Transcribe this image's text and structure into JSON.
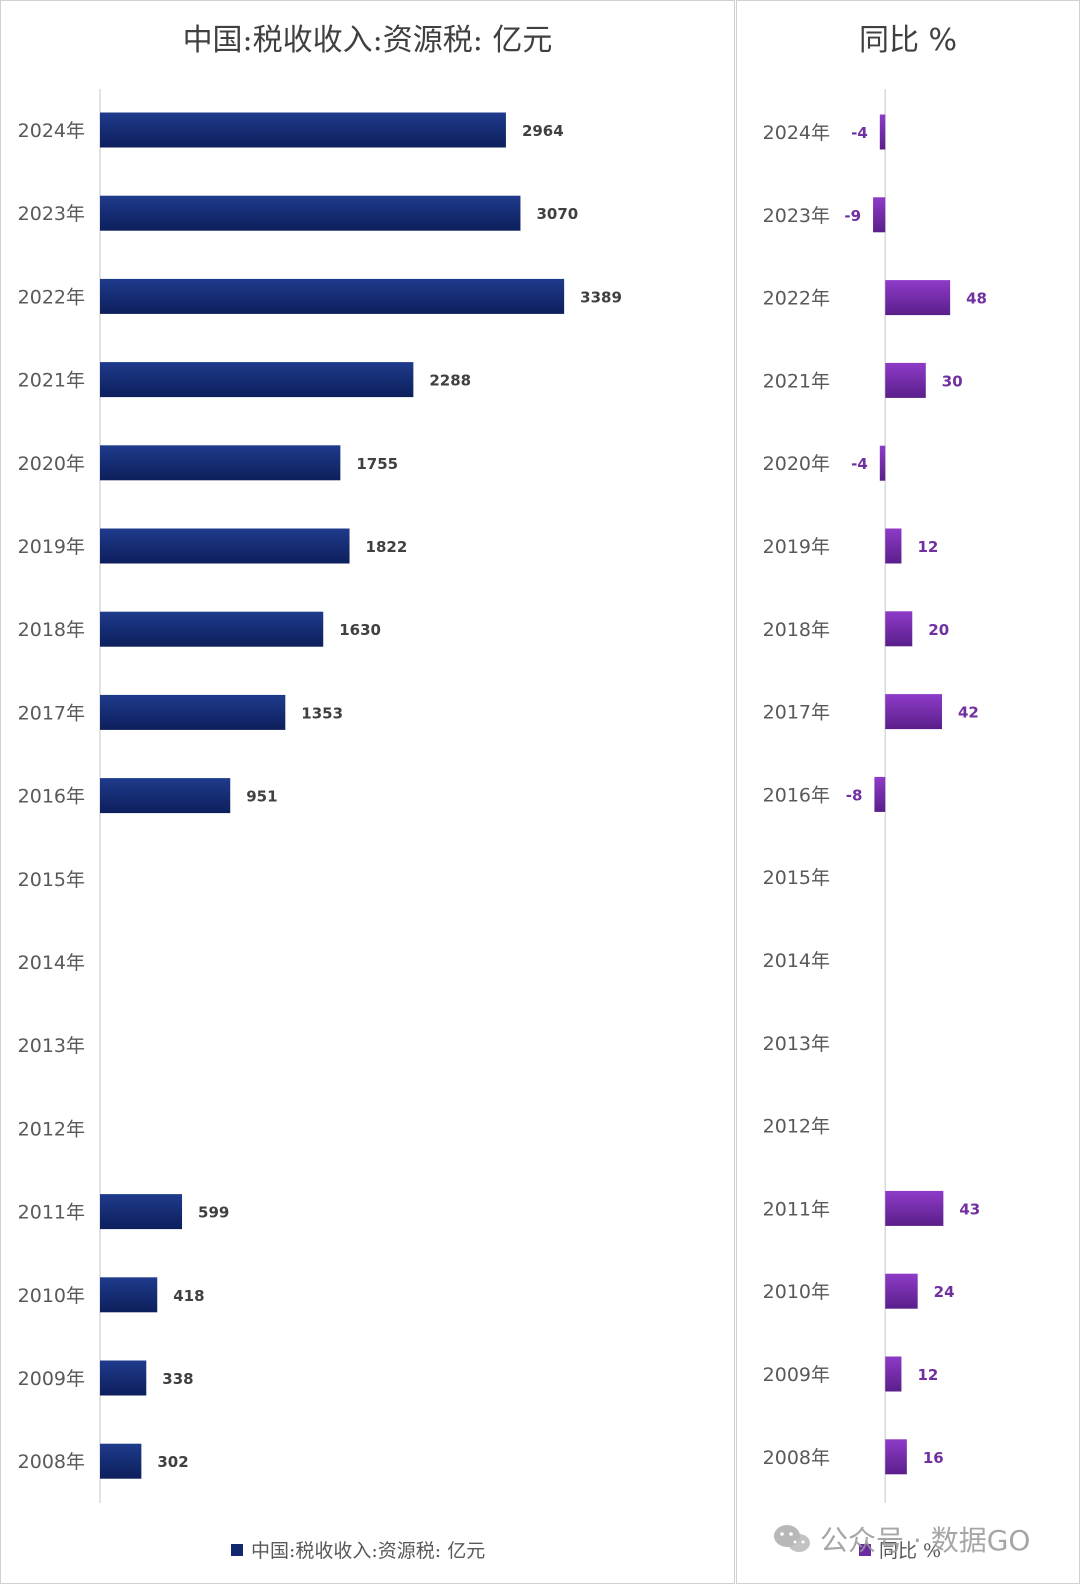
{
  "chart_data": [
    {
      "type": "bar",
      "orientation": "horizontal",
      "title": "中国:税收收入:资源税: 亿元",
      "categories": [
        "2024年",
        "2023年",
        "2022年",
        "2021年",
        "2020年",
        "2019年",
        "2018年",
        "2017年",
        "2016年",
        "2015年",
        "2014年",
        "2013年",
        "2012年",
        "2011年",
        "2010年",
        "2009年",
        "2008年"
      ],
      "series": [
        {
          "name": "中国:税收收入:资源税: 亿元",
          "values": [
            2964,
            3070,
            3389,
            2288,
            1755,
            1822,
            1630,
            1353,
            951,
            null,
            null,
            null,
            null,
            599,
            418,
            338,
            302
          ]
        }
      ],
      "xlim": [
        0,
        4600
      ],
      "data_labels": true,
      "legend": "bottom",
      "grid": false,
      "colors": {
        "bar_top": "#1f3b8c",
        "bar_bottom": "#0d1f5c",
        "label": "#404040",
        "axis": "#d9d9d9",
        "tick": "#595959"
      }
    },
    {
      "type": "bar",
      "orientation": "horizontal",
      "title": "同比 %",
      "categories": [
        "2024年",
        "2023年",
        "2022年",
        "2021年",
        "2020年",
        "2019年",
        "2018年",
        "2017年",
        "2016年",
        "2015年",
        "2014年",
        "2013年",
        "2012年",
        "2011年",
        "2010年",
        "2009年",
        "2008年"
      ],
      "series": [
        {
          "name": "同比 %",
          "values": [
            -4,
            -9,
            48,
            30,
            -4,
            12,
            20,
            42,
            -8,
            null,
            null,
            null,
            null,
            43,
            24,
            12,
            16
          ]
        }
      ],
      "xlim": [
        -12,
        130
      ],
      "data_labels": true,
      "legend": "bottom",
      "grid": false,
      "colors": {
        "bar_top": "#8e3bc8",
        "bar_bottom": "#5a1f8a",
        "label": "#7030a0",
        "axis": "#d9d9d9",
        "tick": "#595959"
      }
    }
  ],
  "watermark": {
    "text": "公众号 · 数据GO",
    "icon": "wechat-icon"
  }
}
